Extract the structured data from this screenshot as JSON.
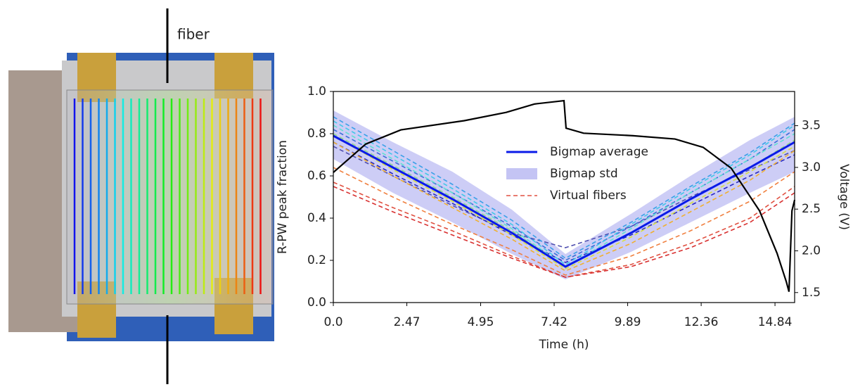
{
  "photo_label": "fiber",
  "chart_data": {
    "type": "line",
    "x_label": "Time (h)",
    "y_label": "R-PW peak fraction",
    "y2_label": "Voltage (V)",
    "xlim": [
      0,
      15.5
    ],
    "xticks": [
      {
        "value": 0,
        "label": "0.0"
      },
      2.47,
      4.95,
      7.42,
      9.89,
      12.36,
      14.84
    ],
    "ylim": [
      0,
      1
    ],
    "yticks": [
      {
        "value": 0,
        "label": "0.0"
      },
      0.2,
      0.4,
      0.6,
      0.8,
      {
        "value": 1,
        "label": "1.0"
      }
    ],
    "y2lim": [
      1.38,
      3.91
    ],
    "y2ticks": [
      1.5,
      {
        "value": 2,
        "label": "2.0"
      },
      2.5,
      {
        "value": 3,
        "label": "3.0"
      },
      3.5
    ],
    "legend": "upper center",
    "x": [
      0,
      2,
      4,
      6,
      7.8,
      10,
      12,
      14,
      15.5
    ],
    "series": [
      {
        "name": "Bigmap average",
        "color": "#0a1be8",
        "values": [
          0.79,
          0.64,
          0.49,
          0.33,
          0.17,
          0.33,
          0.49,
          0.64,
          0.76
        ]
      },
      {
        "name": "Bigmap std",
        "color": "#c4c4f4",
        "lower": [
          0.68,
          0.52,
          0.38,
          0.23,
          0.11,
          0.24,
          0.38,
          0.52,
          0.62
        ],
        "upper": [
          0.91,
          0.76,
          0.62,
          0.44,
          0.23,
          0.42,
          0.6,
          0.77,
          0.88
        ]
      },
      {
        "name": "Virtual fibers",
        "color": "#e05040",
        "dashed": true,
        "lines": [
          {
            "color": "#5050b0",
            "values": [
              0.74,
              0.6,
              0.46,
              0.33,
              0.26,
              0.36,
              0.5,
              0.63,
              0.72
            ]
          },
          {
            "color": "#2a2ac0",
            "values": [
              0.76,
              0.61,
              0.47,
              0.32,
              0.19,
              0.32,
              0.46,
              0.6,
              0.7
            ]
          },
          {
            "color": "#3b6fd8",
            "values": [
              0.82,
              0.67,
              0.52,
              0.36,
              0.2,
              0.36,
              0.52,
              0.68,
              0.82
            ]
          },
          {
            "color": "#3aa0e8",
            "values": [
              0.88,
              0.72,
              0.56,
              0.39,
              0.21,
              0.38,
              0.55,
              0.71,
              0.85
            ]
          },
          {
            "color": "#40c8e8",
            "values": [
              0.86,
              0.7,
              0.54,
              0.37,
              0.18,
              0.37,
              0.54,
              0.7,
              0.84
            ]
          },
          {
            "color": "#60e0d0",
            "values": [
              0.84,
              0.68,
              0.52,
              0.35,
              0.17,
              0.35,
              0.52,
              0.68,
              0.8
            ]
          },
          {
            "color": "#90d890",
            "values": [
              0.8,
              0.65,
              0.5,
              0.34,
              0.17,
              0.33,
              0.49,
              0.64,
              0.77
            ]
          },
          {
            "color": "#d8e040",
            "values": [
              0.79,
              0.63,
              0.48,
              0.32,
              0.16,
              0.31,
              0.47,
              0.62,
              0.74
            ]
          },
          {
            "color": "#f0b030",
            "values": [
              0.76,
              0.6,
              0.45,
              0.3,
              0.15,
              0.28,
              0.43,
              0.58,
              0.72
            ]
          },
          {
            "color": "#f08040",
            "values": [
              0.64,
              0.5,
              0.37,
              0.25,
              0.13,
              0.22,
              0.34,
              0.48,
              0.62
            ]
          },
          {
            "color": "#e05040",
            "values": [
              0.57,
              0.45,
              0.34,
              0.22,
              0.12,
              0.18,
              0.28,
              0.4,
              0.55
            ]
          },
          {
            "color": "#d83030",
            "values": [
              0.55,
              0.43,
              0.32,
              0.21,
              0.12,
              0.17,
              0.26,
              0.38,
              0.52
            ]
          }
        ]
      },
      {
        "axis": "y2",
        "color": "#000000",
        "x": [
          0,
          1.09,
          2.27,
          4.4,
          5.81,
          6.76,
          7.75,
          7.82,
          8.41,
          10.07,
          11.48,
          12.43,
          13.37,
          14.32,
          14.91,
          15.22,
          15.31,
          15.41,
          15.5
        ],
        "values": [
          2.94,
          3.28,
          3.45,
          3.56,
          3.66,
          3.76,
          3.8,
          3.47,
          3.41,
          3.38,
          3.34,
          3.24,
          2.99,
          2.48,
          1.97,
          1.63,
          1.51,
          2.48,
          2.61
        ]
      }
    ]
  }
}
